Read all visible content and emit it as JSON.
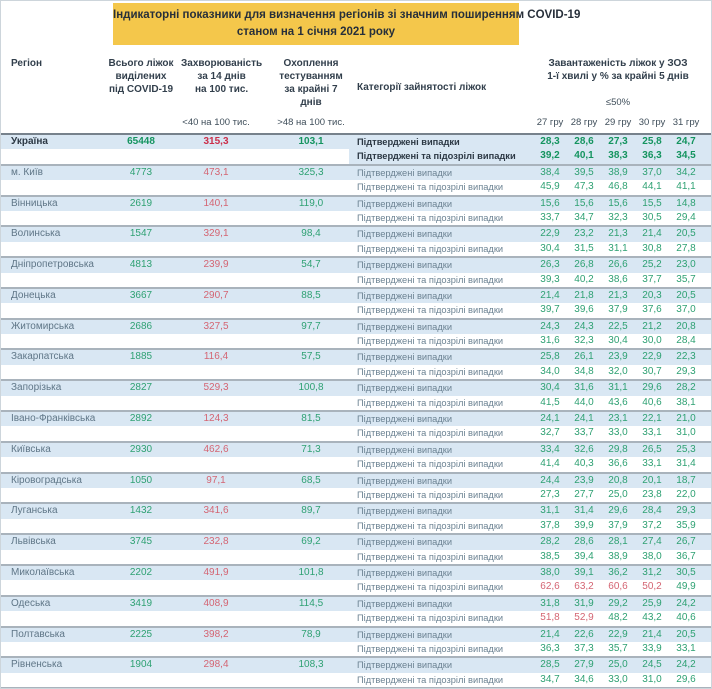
{
  "title": {
    "line1": "Індикаторні показники для визначення регіонів зі значним поширенням COVID-19",
    "line2": "станом на 1 січня 2021 року"
  },
  "header": {
    "region": "Регіон",
    "beds": "Всього ліжок\nвиділених\nпід COVID-19",
    "incidence": "Захворюваність\nза 14 днів\nна 100 тис.",
    "testing": "Охоплення\nтестуванням\nза крайні 7 днів",
    "category": "Категорії зайнятості ліжок",
    "occupancy": "Завантаженість ліжок у ЗОЗ\n1-ї хвилі у % за крайні 5 днів"
  },
  "thresholds": {
    "incidence": "<40 на 100 тис.",
    "testing": ">48 на 100 тис.",
    "occupancy": "≤50%"
  },
  "dates": [
    "27 гру",
    "28 гру",
    "29 гру",
    "30 гру",
    "31 гру"
  ],
  "category_labels": {
    "confirmed": "Підтверджені випадки",
    "confirmed_suspected": "Підтверджені та підозрілі випадки"
  },
  "colors": {
    "banner": "#f4c74b",
    "row_band": "#d9e7f3",
    "good_value": "#2fa173",
    "bad_value": "#d46573",
    "separator": "#a9b3bc"
  },
  "rules": {
    "occupancy_red_above": 50,
    "incidence_red_at_or_above": 40,
    "testing_green_above": 48
  },
  "rows": [
    {
      "region": "Україна",
      "beds": "65448",
      "incidence": "315,3",
      "testing": "103,1",
      "bold": true,
      "confirmed": [
        "28,3",
        "28,6",
        "27,3",
        "25,8",
        "24,7"
      ],
      "suspected": [
        "39,2",
        "40,1",
        "38,3",
        "36,3",
        "34,5"
      ]
    },
    {
      "region": "м. Київ",
      "beds": "4773",
      "incidence": "473,1",
      "testing": "325,3",
      "confirmed": [
        "38,4",
        "39,5",
        "38,9",
        "37,0",
        "34,2"
      ],
      "suspected": [
        "45,9",
        "47,3",
        "46,8",
        "44,1",
        "41,1"
      ]
    },
    {
      "region": "Вінницька",
      "beds": "2619",
      "incidence": "140,1",
      "testing": "119,0",
      "confirmed": [
        "15,6",
        "15,6",
        "15,6",
        "15,5",
        "14,8"
      ],
      "suspected": [
        "33,7",
        "34,7",
        "32,3",
        "30,5",
        "29,4"
      ]
    },
    {
      "region": "Волинська",
      "beds": "1547",
      "incidence": "329,1",
      "testing": "98,4",
      "confirmed": [
        "22,9",
        "23,2",
        "21,3",
        "21,4",
        "20,5"
      ],
      "suspected": [
        "30,4",
        "31,5",
        "31,1",
        "30,8",
        "27,8"
      ]
    },
    {
      "region": "Дніпропетровська",
      "beds": "4813",
      "incidence": "239,9",
      "testing": "54,7",
      "confirmed": [
        "26,3",
        "26,8",
        "26,6",
        "25,2",
        "23,0"
      ],
      "suspected": [
        "39,3",
        "40,2",
        "38,6",
        "37,7",
        "35,7"
      ]
    },
    {
      "region": "Донецька",
      "beds": "3667",
      "incidence": "290,7",
      "testing": "88,5",
      "confirmed": [
        "21,4",
        "21,8",
        "21,3",
        "20,3",
        "20,5"
      ],
      "suspected": [
        "39,7",
        "39,6",
        "37,9",
        "37,6",
        "37,0"
      ]
    },
    {
      "region": "Житомирська",
      "beds": "2686",
      "incidence": "327,5",
      "testing": "97,7",
      "confirmed": [
        "24,3",
        "24,3",
        "22,5",
        "21,2",
        "20,8"
      ],
      "suspected": [
        "31,6",
        "32,3",
        "30,4",
        "30,0",
        "28,4"
      ]
    },
    {
      "region": "Закарпатська",
      "beds": "1885",
      "incidence": "116,4",
      "testing": "57,5",
      "confirmed": [
        "25,8",
        "26,1",
        "23,9",
        "22,9",
        "22,3"
      ],
      "suspected": [
        "34,0",
        "34,8",
        "32,0",
        "30,7",
        "29,3"
      ]
    },
    {
      "region": "Запорізька",
      "beds": "2827",
      "incidence": "529,3",
      "testing": "100,8",
      "confirmed": [
        "30,4",
        "31,6",
        "31,1",
        "29,6",
        "28,2"
      ],
      "suspected": [
        "41,5",
        "44,0",
        "43,6",
        "40,6",
        "38,1"
      ]
    },
    {
      "region": "Івано-Франківська",
      "beds": "2892",
      "incidence": "124,3",
      "testing": "81,5",
      "confirmed": [
        "24,1",
        "24,1",
        "23,1",
        "22,1",
        "21,0"
      ],
      "suspected": [
        "32,7",
        "33,7",
        "33,0",
        "33,1",
        "31,0"
      ]
    },
    {
      "region": "Київська",
      "beds": "2930",
      "incidence": "462,6",
      "testing": "71,3",
      "confirmed": [
        "33,4",
        "32,6",
        "29,8",
        "26,5",
        "25,3"
      ],
      "suspected": [
        "41,4",
        "40,3",
        "36,6",
        "33,1",
        "31,4"
      ]
    },
    {
      "region": "Кіровоградська",
      "beds": "1050",
      "incidence": "97,1",
      "testing": "68,5",
      "confirmed": [
        "24,4",
        "23,9",
        "20,8",
        "20,1",
        "18,7"
      ],
      "suspected": [
        "27,3",
        "27,7",
        "25,0",
        "23,8",
        "22,0"
      ]
    },
    {
      "region": "Луганська",
      "beds": "1432",
      "incidence": "341,6",
      "testing": "89,7",
      "confirmed": [
        "31,1",
        "31,4",
        "29,6",
        "28,4",
        "29,3"
      ],
      "suspected": [
        "37,8",
        "39,9",
        "37,9",
        "37,2",
        "35,9"
      ]
    },
    {
      "region": "Львівська",
      "beds": "3745",
      "incidence": "232,8",
      "testing": "69,2",
      "confirmed": [
        "28,2",
        "28,6",
        "28,1",
        "27,4",
        "26,7"
      ],
      "suspected": [
        "38,5",
        "39,4",
        "38,9",
        "38,0",
        "36,7"
      ]
    },
    {
      "region": "Миколаївська",
      "beds": "2202",
      "incidence": "491,9",
      "testing": "101,8",
      "confirmed": [
        "38,0",
        "39,1",
        "36,2",
        "31,2",
        "30,5"
      ],
      "suspected": [
        "62,6",
        "63,2",
        "60,6",
        "50,2",
        "49,9"
      ]
    },
    {
      "region": "Одеська",
      "beds": "3419",
      "incidence": "408,9",
      "testing": "114,5",
      "confirmed": [
        "31,8",
        "31,9",
        "29,2",
        "25,9",
        "24,2"
      ],
      "suspected": [
        "51,8",
        "52,9",
        "48,2",
        "43,2",
        "40,6"
      ]
    },
    {
      "region": "Полтавська",
      "beds": "2225",
      "incidence": "398,2",
      "testing": "78,9",
      "confirmed": [
        "21,4",
        "22,6",
        "22,9",
        "21,4",
        "20,5"
      ],
      "suspected": [
        "36,3",
        "37,3",
        "35,7",
        "33,9",
        "33,1"
      ]
    },
    {
      "region": "Рівненська",
      "beds": "1904",
      "incidence": "298,4",
      "testing": "108,3",
      "confirmed": [
        "28,5",
        "27,9",
        "25,0",
        "24,5",
        "24,2"
      ],
      "suspected": [
        "34,7",
        "34,6",
        "33,0",
        "31,0",
        "29,6"
      ]
    }
  ]
}
